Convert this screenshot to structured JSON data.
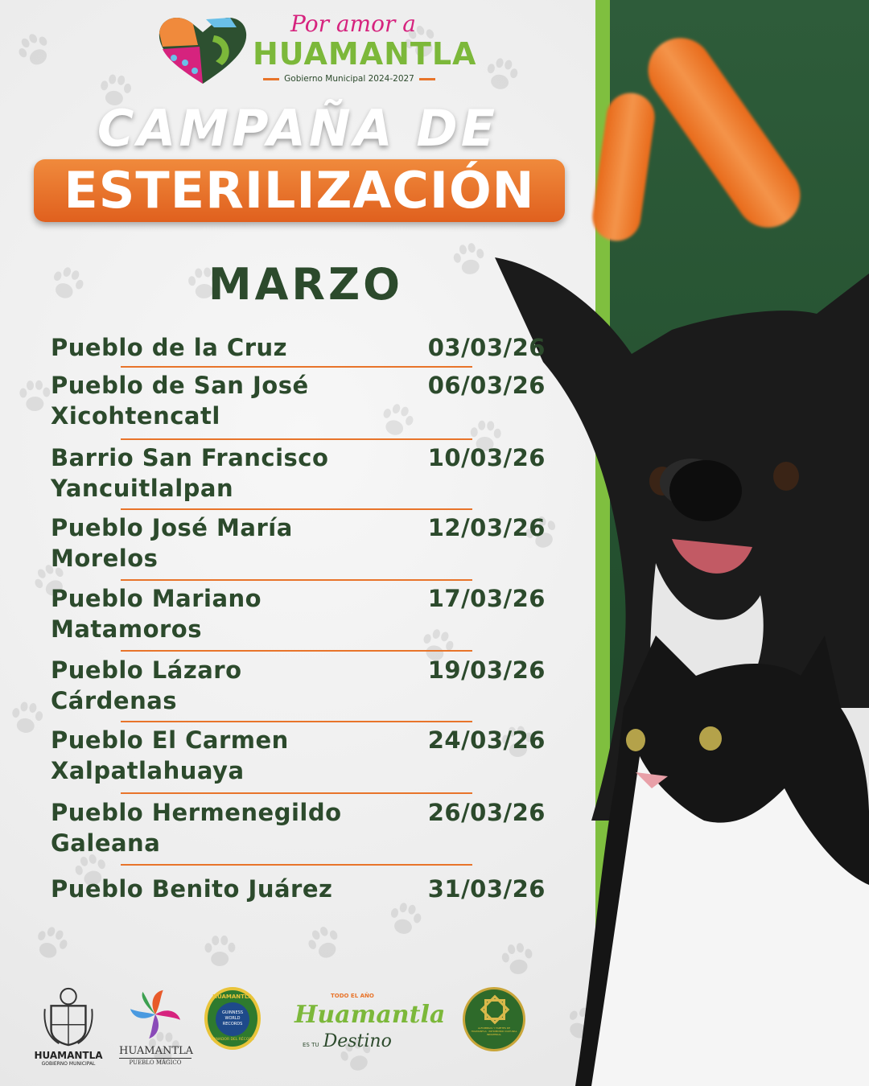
{
  "logo": {
    "script": "Por amor a",
    "brand": "HUAMANTLA",
    "subtitle": "Gobierno Municipal 2024-2027"
  },
  "title": {
    "line1": "CAMPAÑA DE",
    "line2": "ESTERILIZACIÓN"
  },
  "month": "MARZO",
  "schedule": [
    {
      "name": [
        "Pueblo de la Cruz"
      ],
      "date": "03/03/26"
    },
    {
      "name": [
        "Pueblo de San José",
        "Xicohtencatl"
      ],
      "date": "06/03/26"
    },
    {
      "name": [
        "Barrio San Francisco",
        "Yancuitlalpan"
      ],
      "date": "10/03/26"
    },
    {
      "name": [
        "Pueblo José María",
        "Morelos"
      ],
      "date": "12/03/26"
    },
    {
      "name": [
        "Pueblo Mariano",
        "Matamoros"
      ],
      "date": "17/03/26"
    },
    {
      "name": [
        "Pueblo Lázaro",
        "Cárdenas"
      ],
      "date": "19/03/26"
    },
    {
      "name": [
        "Pueblo El Carmen",
        "Xalpatlahuaya"
      ],
      "date": "24/03/26"
    },
    {
      "name": [
        "Pueblo Hermenegildo",
        "Galeana"
      ],
      "date": "26/03/26"
    },
    {
      "name": [
        "Pueblo Benito Juárez"
      ],
      "date": "31/03/26"
    }
  ],
  "footer": {
    "coat_of_arms": {
      "title": "HUAMANTLA",
      "subtitle": "GOBIERNO MUNICIPAL"
    },
    "pueblo_magico": {
      "title": "HUAMANTLA",
      "subtitle": "PUEBLO MÁGICO"
    },
    "guinness": {
      "top": "HUAMANTLA",
      "middle": "GUINNESS WORLD RECORDS",
      "bottom": "GANADOR DEL RÉCORD"
    },
    "destino": {
      "top": "TODO EL AÑO",
      "script": "Huamantla",
      "es_tu": "ES TU",
      "destino": "Destino"
    },
    "patrimonio": {
      "text": "ALFOMBRAS Y TAPETES DE HUAMANTLA · PATRIMONIO CULTURAL INMATERIAL"
    }
  },
  "colors": {
    "text": "#2c4a2c",
    "accent": "#e8742a",
    "lime": "#7fbf3f",
    "pink": "#d6237e",
    "bg_green": "#24502f"
  }
}
